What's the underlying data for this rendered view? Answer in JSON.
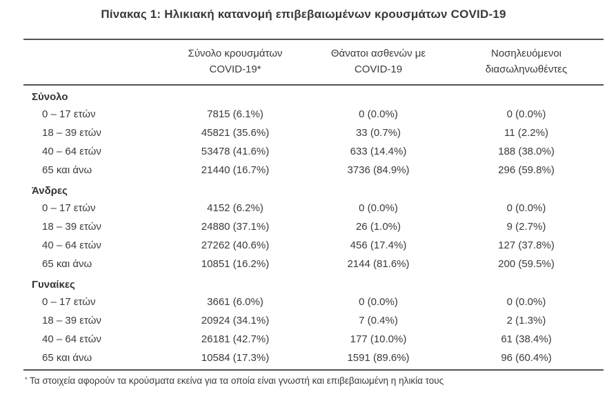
{
  "title": "Πίνακας 1: Ηλικιακή κατανομή επιβεβαιωμένων κρουσμάτων COVID-19",
  "table": {
    "col_headers": [
      {
        "line1": "Σύνολο κρουσμάτων",
        "line2": "COVID-19*"
      },
      {
        "line1": "Θάνατοι ασθενών με",
        "line2": "COVID-19"
      },
      {
        "line1": "Νοσηλευόμενοι",
        "line2": "διασωληνωθέντες"
      }
    ],
    "sections": [
      {
        "name": "Σύνολο",
        "rows": [
          {
            "label": "0 – 17 ετών",
            "cases": "7815 (6.1%)",
            "deaths": "0 (0.0%)",
            "intubated": "0 (0.0%)"
          },
          {
            "label": "18 – 39 ετών",
            "cases": "45821 (35.6%)",
            "deaths": "33 (0.7%)",
            "intubated": "11 (2.2%)"
          },
          {
            "label": "40 – 64 ετών",
            "cases": "53478 (41.6%)",
            "deaths": "633 (14.4%)",
            "intubated": "188 (38.0%)"
          },
          {
            "label": "65 και άνω",
            "cases": "21440 (16.7%)",
            "deaths": "3736 (84.9%)",
            "intubated": "296 (59.8%)"
          }
        ]
      },
      {
        "name": "Άνδρες",
        "rows": [
          {
            "label": "0 – 17 ετών",
            "cases": "4152 (6.2%)",
            "deaths": "0 (0.0%)",
            "intubated": "0 (0.0%)"
          },
          {
            "label": "18 – 39 ετών",
            "cases": "24880 (37.1%)",
            "deaths": "26 (1.0%)",
            "intubated": "9 (2.7%)"
          },
          {
            "label": "40 – 64 ετών",
            "cases": "27262 (40.6%)",
            "deaths": "456 (17.4%)",
            "intubated": "127 (37.8%)"
          },
          {
            "label": "65 και άνω",
            "cases": "10851 (16.2%)",
            "deaths": "2144 (81.6%)",
            "intubated": "200 (59.5%)"
          }
        ]
      },
      {
        "name": "Γυναίκες",
        "rows": [
          {
            "label": "0 – 17 ετών",
            "cases": "3661 (6.0%)",
            "deaths": "0 (0.0%)",
            "intubated": "0 (0.0%)"
          },
          {
            "label": "18 – 39 ετών",
            "cases": "20924 (34.1%)",
            "deaths": "7 (0.4%)",
            "intubated": "2 (1.3%)"
          },
          {
            "label": "40 – 64 ετών",
            "cases": "26181 (42.7%)",
            "deaths": "177 (10.0%)",
            "intubated": "61 (38.4%)"
          },
          {
            "label": "65 και άνω",
            "cases": "10584 (17.3%)",
            "deaths": "1591 (89.6%)",
            "intubated": "96 (60.4%)"
          }
        ]
      }
    ]
  },
  "footnote": {
    "marker": "*",
    "text": "Τα στοιχεία αφορούν τα κρούσματα εκείνα για τα οποία είναι γνωστή και επιβεβαιωμένη η ηλικία τους"
  },
  "colors": {
    "text": "#3a3a3c",
    "rule": "#525254",
    "background": "#ffffff"
  }
}
